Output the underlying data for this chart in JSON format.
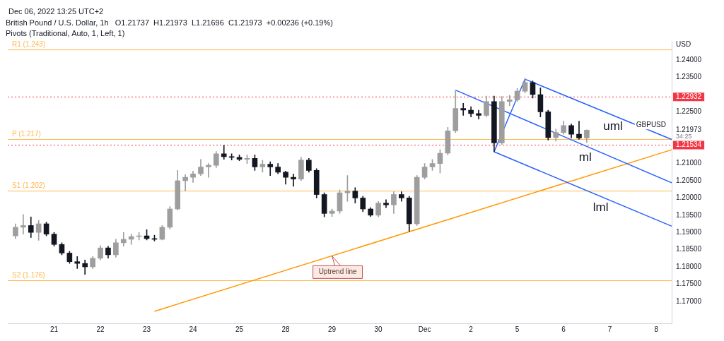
{
  "chart_data": {
    "type": "candlestick",
    "title": "British Pound / U.S. Dollar, 1h   O1.21737  H1.21973  L1.21696  C1.21973  +0.00236 (+0.19%)",
    "subtitle": "Pivots (Traditional, Auto, 1, Left, 1)",
    "ylabel": "USD",
    "categories": [
      null,
      null,
      null,
      null,
      null,
      null,
      "21",
      null,
      null,
      null,
      null,
      null,
      "22",
      null,
      null,
      null,
      null,
      null,
      "23",
      null,
      null,
      null,
      null,
      null,
      "24",
      null,
      null,
      null,
      null,
      null,
      "25",
      null,
      null,
      null,
      null,
      null,
      "28",
      null,
      null,
      null,
      null,
      null,
      "29",
      null,
      null,
      null,
      null,
      null,
      "30",
      null,
      null,
      null,
      null,
      null,
      "Dec",
      null,
      null,
      null,
      null,
      null,
      "2",
      null,
      null,
      null,
      null,
      null,
      "5",
      null,
      null,
      null,
      null,
      null,
      "6",
      null,
      null,
      null,
      null,
      null,
      "7",
      null,
      null,
      null,
      null,
      null,
      "8",
      null,
      null
    ],
    "ohlc": [
      null,
      [
        1.189,
        1.1925,
        1.1882,
        1.1915
      ],
      [
        1.1915,
        1.1952,
        1.1895,
        1.192
      ],
      [
        1.192,
        1.1945,
        1.1885,
        1.19
      ],
      [
        1.19,
        1.1935,
        1.1877,
        1.1925
      ],
      [
        1.1925,
        1.193,
        1.189,
        1.1895
      ],
      [
        1.1895,
        1.19,
        1.186,
        1.1865
      ],
      [
        1.1865,
        1.187,
        1.1835,
        1.184
      ],
      [
        1.184,
        1.1845,
        1.181,
        1.1815
      ],
      [
        1.1815,
        1.183,
        1.1795,
        1.181
      ],
      [
        1.181,
        1.182,
        1.1778,
        1.18
      ],
      [
        1.18,
        1.183,
        1.1795,
        1.1825
      ],
      [
        1.1825,
        1.1862,
        1.182,
        1.1855
      ],
      [
        1.1855,
        1.186,
        1.1825,
        1.1835
      ],
      [
        1.1835,
        1.188,
        1.1828,
        1.187
      ],
      [
        1.187,
        1.19,
        1.186,
        1.188
      ],
      [
        1.188,
        1.1895,
        1.1865,
        1.1888
      ],
      [
        1.1888,
        1.19,
        1.1878,
        1.189
      ],
      [
        1.189,
        1.1908,
        1.1878,
        1.1882
      ],
      [
        1.1882,
        1.1892,
        1.1875,
        1.188
      ],
      [
        1.188,
        1.192,
        1.1878,
        1.1915
      ],
      [
        1.1915,
        1.1975,
        1.191,
        1.1968
      ],
      [
        1.1968,
        1.208,
        1.1965,
        1.205
      ],
      [
        1.205,
        1.2068,
        1.202,
        1.206
      ],
      [
        1.206,
        1.2078,
        1.2045,
        1.207
      ],
      [
        1.207,
        1.2112,
        1.2065,
        1.209
      ],
      [
        1.209,
        1.21,
        1.206,
        1.2095
      ],
      [
        1.2095,
        1.2135,
        1.2088,
        1.2128
      ],
      [
        1.2128,
        1.2153,
        1.2112,
        1.212
      ],
      [
        1.212,
        1.2128,
        1.211,
        1.2118
      ],
      [
        1.2118,
        1.2125,
        1.2108,
        1.2112
      ],
      [
        1.2112,
        1.2125,
        1.21,
        1.2115
      ],
      [
        1.2115,
        1.2125,
        1.208,
        1.209
      ],
      [
        1.209,
        1.211,
        1.2075,
        1.2098
      ],
      [
        1.2098,
        1.2105,
        1.2065,
        1.209
      ],
      [
        1.209,
        1.21,
        1.207,
        1.2075
      ],
      [
        1.2075,
        1.2078,
        1.204,
        1.206
      ],
      [
        1.206,
        1.207,
        1.2034,
        1.2055
      ],
      [
        1.2055,
        1.2118,
        1.205,
        1.211
      ],
      [
        1.211,
        1.2115,
        1.2075,
        1.208
      ],
      [
        1.208,
        1.2085,
        1.2,
        1.201
      ],
      [
        1.201,
        1.2015,
        1.1945,
        1.1955
      ],
      [
        1.1955,
        1.1968,
        1.1946,
        1.1962
      ],
      [
        1.1962,
        1.2023,
        1.1955,
        1.2015
      ],
      [
        1.2015,
        1.2065,
        1.199,
        1.202
      ],
      [
        1.202,
        1.203,
        1.1985,
        1.2
      ],
      [
        1.2,
        1.2005,
        1.196,
        1.1968
      ],
      [
        1.1968,
        1.1972,
        1.1946,
        1.195
      ],
      [
        1.195,
        1.199,
        1.1945,
        1.1985
      ],
      [
        1.1985,
        1.1995,
        1.1972,
        1.198
      ],
      [
        1.198,
        1.2018,
        1.1955,
        1.201
      ],
      [
        1.201,
        1.2018,
        1.199,
        1.2
      ],
      [
        1.2,
        1.2005,
        1.1903,
        1.1925
      ],
      [
        1.1925,
        1.2065,
        1.192,
        1.206
      ],
      [
        1.206,
        1.21,
        1.2055,
        1.209
      ],
      [
        1.209,
        1.2112,
        1.208,
        1.21
      ],
      [
        1.21,
        1.214,
        1.2072,
        1.213
      ],
      [
        1.213,
        1.2205,
        1.2125,
        1.2195
      ],
      [
        1.2195,
        1.2312,
        1.219,
        1.226
      ],
      [
        1.226,
        1.2275,
        1.224,
        1.2255
      ],
      [
        1.2255,
        1.2265,
        1.2235,
        1.2245
      ],
      [
        1.2245,
        1.2255,
        1.2229,
        1.224
      ],
      [
        1.224,
        1.2296,
        1.2235,
        1.228
      ],
      [
        1.228,
        1.2296,
        1.2134,
        1.216
      ],
      [
        1.216,
        1.2295,
        1.2155,
        1.228
      ],
      [
        1.228,
        1.2298,
        1.2268,
        1.2285
      ],
      [
        1.2285,
        1.2318,
        1.228,
        1.231
      ],
      [
        1.231,
        1.2347,
        1.2305,
        1.2335
      ],
      [
        1.2335,
        1.234,
        1.229,
        1.23
      ],
      [
        1.23,
        1.232,
        1.2235,
        1.225
      ],
      [
        1.225,
        1.2255,
        1.2168,
        1.2175
      ],
      [
        1.2175,
        1.22,
        1.2165,
        1.219
      ],
      [
        1.219,
        1.2223,
        1.2185,
        1.221
      ],
      [
        1.221,
        1.2215,
        1.2174,
        1.2185
      ],
      [
        1.2185,
        1.2223,
        1.217,
        1.2174
      ],
      [
        1.2174,
        1.2198,
        1.2161,
        1.2197
      ],
      null,
      null,
      null,
      null,
      null,
      null,
      null,
      null,
      null,
      null,
      null
    ],
    "series": [
      {
        "type": "line",
        "name": "uml",
        "color": "#2962ff",
        "values": [
          null,
          null,
          null,
          null,
          null,
          null,
          null,
          null,
          null,
          null,
          null,
          null,
          null,
          null,
          null,
          null,
          null,
          null,
          null,
          null,
          null,
          null,
          null,
          null,
          null,
          null,
          null,
          null,
          null,
          null,
          null,
          null,
          null,
          null,
          null,
          null,
          null,
          null,
          null,
          null,
          null,
          null,
          null,
          null,
          null,
          null,
          null,
          null,
          null,
          null,
          null,
          null,
          null,
          null,
          null,
          null,
          null,
          null,
          null,
          null,
          null,
          null,
          null,
          null,
          null,
          null,
          null,
          1.2345,
          null,
          null,
          null,
          null,
          null,
          null,
          null,
          null,
          null,
          null,
          null,
          null,
          null,
          null,
          null,
          null,
          null,
          null,
          1.217
        ]
      },
      {
        "type": "line",
        "name": "ml",
        "color": "#2962ff",
        "values": [
          null,
          null,
          null,
          null,
          null,
          null,
          null,
          null,
          null,
          null,
          null,
          null,
          null,
          null,
          null,
          null,
          null,
          null,
          null,
          null,
          null,
          null,
          null,
          null,
          null,
          null,
          null,
          null,
          null,
          null,
          null,
          null,
          null,
          null,
          null,
          null,
          null,
          null,
          null,
          null,
          null,
          null,
          null,
          null,
          null,
          null,
          null,
          null,
          null,
          null,
          null,
          null,
          null,
          null,
          null,
          null,
          null,
          null,
          1.2313,
          null,
          null,
          null,
          null,
          null,
          null,
          null,
          null,
          null,
          null,
          null,
          null,
          null,
          null,
          null,
          null,
          null,
          null,
          null,
          null,
          null,
          null,
          null,
          null,
          null,
          null,
          null,
          1.2044
        ]
      },
      {
        "type": "line",
        "name": "lml",
        "color": "#2962ff",
        "values": [
          null,
          null,
          null,
          null,
          null,
          null,
          null,
          null,
          null,
          null,
          null,
          null,
          null,
          null,
          null,
          null,
          null,
          null,
          null,
          null,
          null,
          null,
          null,
          null,
          null,
          null,
          null,
          null,
          null,
          null,
          null,
          null,
          null,
          null,
          null,
          null,
          null,
          null,
          null,
          null,
          null,
          null,
          null,
          null,
          null,
          null,
          null,
          null,
          null,
          null,
          null,
          null,
          null,
          null,
          null,
          null,
          null,
          null,
          null,
          null,
          null,
          null,
          null,
          1.2134,
          null,
          null,
          null,
          null,
          null,
          null,
          null,
          null,
          null,
          null,
          null,
          null,
          null,
          null,
          null,
          null,
          null,
          null,
          null,
          null,
          null,
          null,
          1.1918
        ]
      },
      {
        "type": "line",
        "color": "#2962ff",
        "values": [
          null,
          null,
          null,
          null,
          null,
          null,
          null,
          null,
          null,
          null,
          null,
          null,
          null,
          null,
          null,
          null,
          null,
          null,
          null,
          null,
          null,
          null,
          null,
          null,
          null,
          null,
          null,
          null,
          null,
          null,
          null,
          null,
          null,
          null,
          null,
          null,
          null,
          null,
          null,
          null,
          null,
          null,
          null,
          null,
          null,
          null,
          null,
          null,
          null,
          null,
          null,
          null,
          null,
          null,
          null,
          null,
          null,
          null,
          null,
          null,
          null,
          null,
          null,
          1.2134,
          null,
          null,
          null,
          1.2345,
          null,
          null,
          null,
          null,
          null,
          null,
          null,
          null,
          null,
          null,
          null,
          null,
          null,
          null,
          null,
          null,
          null,
          null,
          null
        ]
      },
      {
        "type": "line",
        "color": "#ff9800",
        "values": [
          null,
          null,
          null,
          null,
          null,
          null,
          null,
          null,
          null,
          null,
          null,
          null,
          null,
          null,
          null,
          null,
          null,
          null,
          null,
          1.1671,
          null,
          null,
          null,
          null,
          null,
          null,
          null,
          null,
          null,
          null,
          null,
          null,
          null,
          null,
          null,
          null,
          null,
          null,
          null,
          null,
          null,
          null,
          null,
          null,
          null,
          null,
          null,
          null,
          null,
          null,
          null,
          null,
          null,
          null,
          null,
          null,
          null,
          null,
          null,
          null,
          null,
          null,
          null,
          null,
          null,
          null,
          null,
          null,
          null,
          null,
          null,
          null,
          null,
          null,
          null,
          null,
          null,
          null,
          null,
          null,
          null,
          null,
          null,
          null,
          null,
          null,
          1.214
        ]
      }
    ],
    "ylim": [
      1.1636,
      1.2455
    ],
    "yticks": [
      {
        "value": 1.17,
        "label": "1.17000"
      },
      {
        "value": 1.175,
        "label": "1.17500"
      },
      {
        "value": 1.18,
        "label": "1.18000"
      },
      {
        "value": 1.185,
        "label": "1.18500"
      },
      {
        "value": 1.19,
        "label": "1.19000"
      },
      {
        "value": 1.195,
        "label": "1.19500"
      },
      {
        "value": 1.2,
        "label": "1.20000"
      },
      {
        "value": 1.205,
        "label": "1.20500"
      },
      {
        "value": 1.21,
        "label": "1.21000"
      },
      {
        "value": 1.21973,
        "label": "1.21973"
      },
      {
        "value": 1.225,
        "label": "1.22500"
      },
      {
        "value": 1.235,
        "label": "1.23500"
      },
      {
        "value": 1.24,
        "label": "1.24000"
      }
    ],
    "ref_lines": [
      {
        "axis": "y",
        "value": 1.22932,
        "label": "1.22932",
        "color": "#f23645",
        "line_style": "dotted"
      },
      {
        "axis": "y",
        "value": 1.21534,
        "label": "1.21534",
        "color": "#f23645",
        "line_style": "dotted"
      },
      {
        "axis": "y",
        "value": 1.243,
        "label": "R1 (1.243)",
        "color": "#ffb74d",
        "line_style": "solid"
      },
      {
        "axis": "y",
        "value": 1.217,
        "label": "P (1.217)",
        "color": "#ffb74d",
        "line_style": "solid"
      },
      {
        "axis": "y",
        "value": 1.202,
        "label": "S1 (1.202)",
        "color": "#ffb74d",
        "line_style": "solid"
      },
      {
        "axis": "y",
        "value": 1.176,
        "label": "S2 (1.176)",
        "color": "#ffb74d",
        "line_style": "solid"
      }
    ],
    "annotations": [
      "Dec 06, 2022 13:25 UTC+2",
      {
        "text": "Uptrend line",
        "x": "29",
        "y": 1.1832
      },
      "GBPUSD",
      "34:25"
    ],
    "grid": false,
    "legend": false
  }
}
